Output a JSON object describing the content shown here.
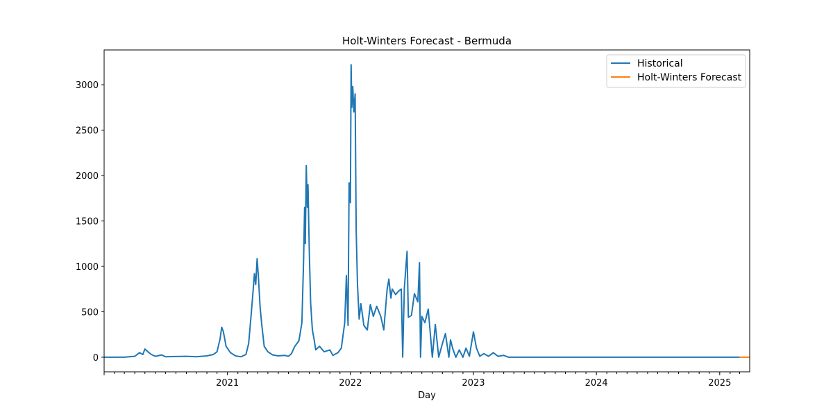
{
  "chart_data": {
    "type": "line",
    "title": "Holt-Winters Forecast - Bermuda",
    "xlabel": "Day",
    "ylabel": "",
    "x_ticks": [
      "2021",
      "2022",
      "2023",
      "2024",
      "2025"
    ],
    "y_ticks": [
      0,
      500,
      1000,
      1500,
      2000,
      2500,
      3000
    ],
    "xlim": [
      "2020-01-01",
      "2025-03-31"
    ],
    "ylim": [
      -161,
      3383
    ],
    "grid": false,
    "legend_position": "top-right",
    "series": [
      {
        "name": "Historical",
        "color": "#1f77b4",
        "points": [
          [
            "2020-01-01",
            0
          ],
          [
            "2020-03-01",
            0
          ],
          [
            "2020-04-01",
            10
          ],
          [
            "2020-04-15",
            50
          ],
          [
            "2020-04-25",
            30
          ],
          [
            "2020-05-01",
            90
          ],
          [
            "2020-05-10",
            60
          ],
          [
            "2020-05-20",
            30
          ],
          [
            "2020-06-01",
            10
          ],
          [
            "2020-06-20",
            25
          ],
          [
            "2020-07-01",
            5
          ],
          [
            "2020-08-01",
            8
          ],
          [
            "2020-09-01",
            10
          ],
          [
            "2020-10-01",
            5
          ],
          [
            "2020-11-01",
            15
          ],
          [
            "2020-11-20",
            30
          ],
          [
            "2020-12-01",
            60
          ],
          [
            "2020-12-10",
            200
          ],
          [
            "2020-12-15",
            330
          ],
          [
            "2020-12-20",
            280
          ],
          [
            "2020-12-28",
            120
          ],
          [
            "2021-01-10",
            50
          ],
          [
            "2021-01-25",
            15
          ],
          [
            "2021-02-10",
            5
          ],
          [
            "2021-02-25",
            30
          ],
          [
            "2021-03-05",
            150
          ],
          [
            "2021-03-12",
            450
          ],
          [
            "2021-03-18",
            720
          ],
          [
            "2021-03-22",
            920
          ],
          [
            "2021-03-26",
            800
          ],
          [
            "2021-03-30",
            1085
          ],
          [
            "2021-04-03",
            880
          ],
          [
            "2021-04-08",
            550
          ],
          [
            "2021-04-13",
            350
          ],
          [
            "2021-04-20",
            120
          ],
          [
            "2021-05-01",
            60
          ],
          [
            "2021-05-15",
            25
          ],
          [
            "2021-06-01",
            15
          ],
          [
            "2021-06-20",
            20
          ],
          [
            "2021-07-01",
            10
          ],
          [
            "2021-07-10",
            40
          ],
          [
            "2021-07-20",
            120
          ],
          [
            "2021-08-01",
            180
          ],
          [
            "2021-08-10",
            380
          ],
          [
            "2021-08-15",
            1050
          ],
          [
            "2021-08-18",
            1650
          ],
          [
            "2021-08-20",
            1250
          ],
          [
            "2021-08-23",
            2110
          ],
          [
            "2021-08-26",
            1650
          ],
          [
            "2021-08-28",
            1900
          ],
          [
            "2021-09-01",
            1150
          ],
          [
            "2021-09-05",
            600
          ],
          [
            "2021-09-10",
            300
          ],
          [
            "2021-09-15",
            200
          ],
          [
            "2021-09-20",
            80
          ],
          [
            "2021-10-01",
            120
          ],
          [
            "2021-10-15",
            60
          ],
          [
            "2021-11-01",
            80
          ],
          [
            "2021-11-10",
            20
          ],
          [
            "2021-11-25",
            50
          ],
          [
            "2021-12-05",
            100
          ],
          [
            "2021-12-15",
            380
          ],
          [
            "2021-12-20",
            900
          ],
          [
            "2021-12-25",
            350
          ],
          [
            "2021-12-28",
            1920
          ],
          [
            "2022-01-01",
            1700
          ],
          [
            "2022-01-03",
            3220
          ],
          [
            "2022-01-05",
            2750
          ],
          [
            "2022-01-08",
            2980
          ],
          [
            "2022-01-11",
            2700
          ],
          [
            "2022-01-15",
            2900
          ],
          [
            "2022-01-18",
            1400
          ],
          [
            "2022-01-22",
            800
          ],
          [
            "2022-01-27",
            420
          ],
          [
            "2022-02-01",
            590
          ],
          [
            "2022-02-10",
            350
          ],
          [
            "2022-02-20",
            300
          ],
          [
            "2022-03-01",
            580
          ],
          [
            "2022-03-10",
            450
          ],
          [
            "2022-03-20",
            560
          ],
          [
            "2022-04-01",
            450
          ],
          [
            "2022-04-10",
            300
          ],
          [
            "2022-04-20",
            750
          ],
          [
            "2022-04-25",
            860
          ],
          [
            "2022-05-01",
            650
          ],
          [
            "2022-05-05",
            750
          ],
          [
            "2022-05-15",
            690
          ],
          [
            "2022-05-25",
            730
          ],
          [
            "2022-06-01",
            750
          ],
          [
            "2022-06-05",
            0
          ],
          [
            "2022-06-10",
            760
          ],
          [
            "2022-06-18",
            1165
          ],
          [
            "2022-06-22",
            440
          ],
          [
            "2022-07-01",
            460
          ],
          [
            "2022-07-10",
            700
          ],
          [
            "2022-07-20",
            610
          ],
          [
            "2022-07-25",
            1040
          ],
          [
            "2022-07-28",
            0
          ],
          [
            "2022-08-01",
            450
          ],
          [
            "2022-08-10",
            380
          ],
          [
            "2022-08-20",
            530
          ],
          [
            "2022-09-01",
            0
          ],
          [
            "2022-09-10",
            360
          ],
          [
            "2022-09-20",
            0
          ],
          [
            "2022-10-01",
            150
          ],
          [
            "2022-10-10",
            260
          ],
          [
            "2022-10-20",
            0
          ],
          [
            "2022-10-25",
            190
          ],
          [
            "2022-11-01",
            90
          ],
          [
            "2022-11-10",
            0
          ],
          [
            "2022-11-20",
            80
          ],
          [
            "2022-12-01",
            0
          ],
          [
            "2022-12-10",
            100
          ],
          [
            "2022-12-20",
            10
          ],
          [
            "2023-01-01",
            280
          ],
          [
            "2023-01-10",
            100
          ],
          [
            "2023-01-20",
            10
          ],
          [
            "2023-02-01",
            40
          ],
          [
            "2023-02-15",
            10
          ],
          [
            "2023-03-01",
            50
          ],
          [
            "2023-03-15",
            10
          ],
          [
            "2023-04-01",
            20
          ],
          [
            "2023-04-15",
            0
          ],
          [
            "2025-03-01",
            0
          ]
        ]
      },
      {
        "name": "Holt-Winters Forecast",
        "color": "#ff7f0e",
        "points": [
          [
            "2025-03-01",
            0
          ],
          [
            "2025-03-31",
            0
          ]
        ]
      }
    ]
  }
}
